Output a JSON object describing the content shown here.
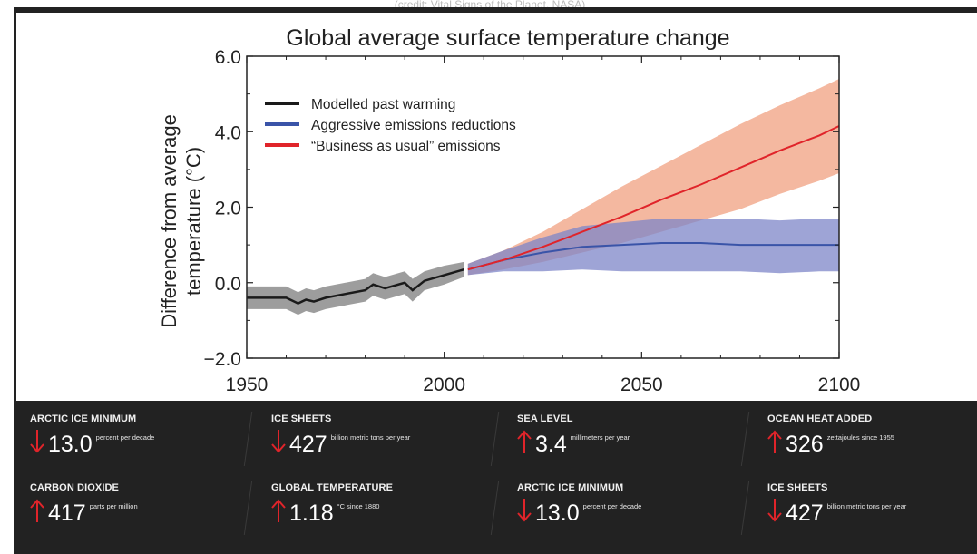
{
  "chart_data": {
    "type": "line",
    "title": "Global average surface temperature change",
    "xlabel": "",
    "ylabel": "Difference from average temperature (°C)",
    "xlim": [
      1950,
      2100
    ],
    "ylim": [
      -2.0,
      6.0
    ],
    "x_ticks": [
      "1950",
      "2000",
      "2050",
      "2100"
    ],
    "y_ticks": [
      "−2.0",
      "0.0",
      "2.0",
      "4.0",
      "6.0"
    ],
    "legend_position": "top-left",
    "series": [
      {
        "name": "Modelled past warming",
        "color": "#1a1a1a",
        "band_color": "#8c8c8c",
        "x": [
          1950,
          1955,
          1960,
          1963,
          1965,
          1967,
          1970,
          1975,
          1980,
          1982,
          1985,
          1990,
          1992,
          1995,
          2000,
          2005
        ],
        "y": [
          -0.4,
          -0.4,
          -0.4,
          -0.55,
          -0.45,
          -0.5,
          -0.4,
          -0.3,
          -0.2,
          -0.05,
          -0.15,
          0.0,
          -0.2,
          0.05,
          0.2,
          0.35
        ],
        "lower": [
          -0.7,
          -0.7,
          -0.7,
          -0.85,
          -0.75,
          -0.8,
          -0.7,
          -0.6,
          -0.5,
          -0.35,
          -0.45,
          -0.3,
          -0.5,
          -0.2,
          -0.05,
          0.15
        ],
        "upper": [
          -0.1,
          -0.1,
          -0.1,
          -0.25,
          -0.15,
          -0.2,
          -0.1,
          0.0,
          0.1,
          0.25,
          0.15,
          0.3,
          0.1,
          0.3,
          0.45,
          0.55
        ]
      },
      {
        "name": "Aggressive emissions reductions",
        "color": "#3a54a8",
        "band_color": "#7d85c8",
        "x": [
          2006,
          2015,
          2025,
          2035,
          2045,
          2055,
          2065,
          2075,
          2085,
          2095,
          2100
        ],
        "y": [
          0.35,
          0.6,
          0.8,
          0.95,
          1.0,
          1.05,
          1.05,
          1.0,
          1.0,
          1.0,
          1.0
        ],
        "lower": [
          0.2,
          0.3,
          0.3,
          0.35,
          0.3,
          0.3,
          0.3,
          0.3,
          0.25,
          0.3,
          0.3
        ],
        "upper": [
          0.5,
          0.85,
          1.2,
          1.5,
          1.6,
          1.7,
          1.7,
          1.7,
          1.65,
          1.7,
          1.7
        ]
      },
      {
        "name": "“Business as usual” emissions",
        "color": "#e0242a",
        "band_color": "#f0a080",
        "x": [
          2006,
          2015,
          2025,
          2035,
          2045,
          2055,
          2065,
          2075,
          2085,
          2095,
          2100
        ],
        "y": [
          0.35,
          0.6,
          0.95,
          1.35,
          1.75,
          2.2,
          2.6,
          3.05,
          3.5,
          3.9,
          4.15
        ],
        "lower": [
          0.2,
          0.35,
          0.55,
          0.8,
          1.05,
          1.35,
          1.65,
          1.95,
          2.35,
          2.7,
          2.9
        ],
        "upper": [
          0.5,
          0.85,
          1.35,
          1.95,
          2.55,
          3.1,
          3.65,
          4.2,
          4.7,
          5.15,
          5.4
        ]
      }
    ]
  },
  "stats": [
    {
      "label": "ARCTIC ICE MINIMUM",
      "direction": "down",
      "value": "13.0",
      "unit": "percent per decade"
    },
    {
      "label": "ICE SHEETS",
      "direction": "down",
      "value": "427",
      "unit": "billion metric tons per year"
    },
    {
      "label": "SEA LEVEL",
      "direction": "up",
      "value": "3.4",
      "unit": "millimeters per year"
    },
    {
      "label": "OCEAN HEAT ADDED",
      "direction": "up",
      "value": "326",
      "unit": "zettajoules since 1955"
    },
    {
      "label": "CARBON DIOXIDE",
      "direction": "up",
      "value": "417",
      "unit": "parts per million"
    },
    {
      "label": "GLOBAL TEMPERATURE",
      "direction": "up",
      "value": "1.18",
      "unit": "°C since 1880"
    },
    {
      "label": "ARCTIC ICE MINIMUM",
      "direction": "down",
      "value": "13.0",
      "unit": "percent per decade"
    },
    {
      "label": "ICE SHEETS",
      "direction": "down",
      "value": "427",
      "unit": "billion metric tons per year"
    }
  ],
  "colors": {
    "arrow": "#e0242a",
    "panel_bg": "#222222"
  },
  "caption": "(credit: Vital Signs of the Planet, NASA)"
}
